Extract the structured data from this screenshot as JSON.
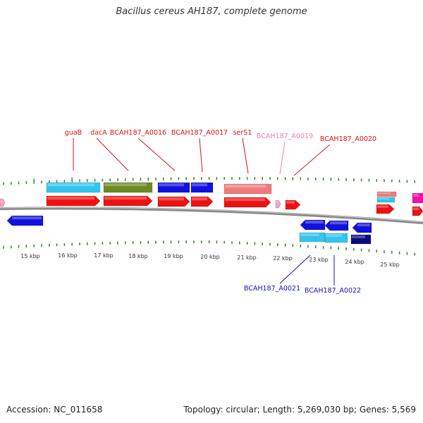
{
  "title": "Bacillus cereus AH187, complete genome",
  "footer": {
    "accession": "Accession: NC_011658",
    "summary": "Topology: circular; Length: 5,269,030 bp; Genes: 5,569"
  },
  "colors": {
    "red": "#ee1111",
    "cyan": "#33c4ee",
    "olive": "#6b8a22",
    "blue": "#1111dd",
    "salmon": "#ee7b7b",
    "pink": "#f2a4c4",
    "magenta": "#ee11aa",
    "navy": "#0a0a80",
    "tick": "#2a8a2a",
    "backbone": "#8a8a8a",
    "label_red": "#dd1111",
    "label_pink": "#f07fb2",
    "label_blue": "#1111bb"
  },
  "kbp_labels": [
    "15 kbp",
    "16 kbp",
    "17 kbp",
    "18 kbp",
    "19 kbp",
    "20 kbp",
    "21 kbp",
    "22 kbp",
    "23 kbp",
    "24 kbp",
    "25 kbp"
  ],
  "gene_labels": [
    "guaB",
    "dacA",
    "BCAH187_A0016",
    "BCAH187_A0017",
    "serS1",
    "BCAH187_A0019",
    "BCAH187_A0020",
    "BCAH187_A0021",
    "BCAH187_A0022"
  ]
}
